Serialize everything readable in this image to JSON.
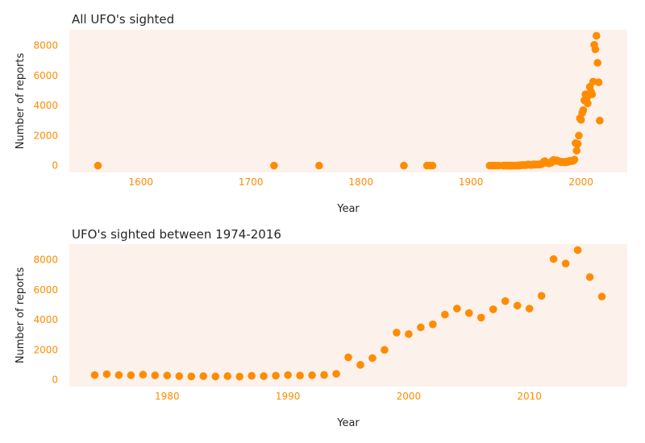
{
  "style": {
    "plot_background": "#fdf1ec",
    "marker_color": "#ff8c00",
    "tick_label_color": "#ff8c00",
    "text_color": "#262626"
  },
  "chart_data": [
    {
      "type": "scatter",
      "title": "All UFO's sighted",
      "xlabel": "Year",
      "ylabel": "Number of reports",
      "xlim": [
        1535,
        2042
      ],
      "ylim": [
        -450,
        9050
      ],
      "xticks": [
        1600,
        1700,
        1800,
        1900,
        2000
      ],
      "yticks": [
        0,
        2000,
        4000,
        6000,
        8000
      ],
      "grid": false,
      "x": [
        1561,
        1721,
        1762,
        1839,
        1860,
        1863,
        1865,
        1917,
        1920,
        1922,
        1925,
        1929,
        1930,
        1931,
        1933,
        1934,
        1935,
        1936,
        1937,
        1939,
        1941,
        1942,
        1943,
        1944,
        1945,
        1946,
        1947,
        1948,
        1949,
        1950,
        1951,
        1952,
        1953,
        1954,
        1955,
        1956,
        1957,
        1958,
        1959,
        1960,
        1961,
        1962,
        1963,
        1964,
        1965,
        1966,
        1967,
        1968,
        1969,
        1970,
        1971,
        1972,
        1973,
        1974,
        1975,
        1976,
        1977,
        1978,
        1979,
        1980,
        1981,
        1982,
        1983,
        1984,
        1985,
        1986,
        1987,
        1988,
        1989,
        1990,
        1991,
        1992,
        1993,
        1994,
        1995,
        1996,
        1997,
        1998,
        1999,
        2000,
        2001,
        2002,
        2003,
        2004,
        2005,
        2006,
        2007,
        2008,
        2009,
        2010,
        2011,
        2012,
        2013,
        2014,
        2015,
        2016,
        2017
      ],
      "y": [
        1,
        1,
        1,
        1,
        1,
        1,
        1,
        1,
        1,
        2,
        1,
        1,
        2,
        2,
        1,
        1,
        2,
        2,
        3,
        3,
        4,
        8,
        10,
        8,
        24,
        32,
        45,
        30,
        40,
        35,
        60,
        80,
        50,
        60,
        40,
        55,
        90,
        60,
        70,
        80,
        70,
        75,
        90,
        100,
        150,
        250,
        300,
        200,
        200,
        180,
        150,
        200,
        200,
        320,
        380,
        320,
        310,
        350,
        300,
        290,
        250,
        230,
        250,
        230,
        250,
        220,
        270,
        250,
        280,
        320,
        290,
        310,
        330,
        400,
        1500,
        1000,
        1450,
        2000,
        3150,
        3050,
        3500,
        3700,
        4350,
        4750,
        4450,
        4150,
        4700,
        5250,
        4950,
        4750,
        5600,
        8050,
        7750,
        8650,
        6850,
        5550,
        3000
      ]
    },
    {
      "type": "scatter",
      "title": "UFO's sighted between 1974-2016",
      "xlabel": "Year",
      "ylabel": "Number of reports",
      "xlim": [
        1971.9,
        2018.1
      ],
      "ylim": [
        -450,
        9050
      ],
      "xticks": [
        1980,
        1990,
        2000,
        2010
      ],
      "yticks": [
        0,
        2000,
        4000,
        6000,
        8000
      ],
      "grid": false,
      "x": [
        1974,
        1975,
        1976,
        1977,
        1978,
        1979,
        1980,
        1981,
        1982,
        1983,
        1984,
        1985,
        1986,
        1987,
        1988,
        1989,
        1990,
        1991,
        1992,
        1993,
        1994,
        1995,
        1996,
        1997,
        1998,
        1999,
        2000,
        2001,
        2002,
        2003,
        2004,
        2005,
        2006,
        2007,
        2008,
        2009,
        2010,
        2011,
        2012,
        2013,
        2014,
        2015,
        2016
      ],
      "y": [
        320,
        380,
        320,
        310,
        350,
        300,
        290,
        250,
        230,
        250,
        230,
        250,
        220,
        270,
        250,
        280,
        320,
        290,
        310,
        330,
        400,
        1500,
        1000,
        1450,
        2000,
        3150,
        3050,
        3500,
        3700,
        4350,
        4750,
        4450,
        4150,
        4700,
        5250,
        4950,
        4750,
        5600,
        8050,
        7750,
        8650,
        6850,
        5550
      ]
    }
  ]
}
